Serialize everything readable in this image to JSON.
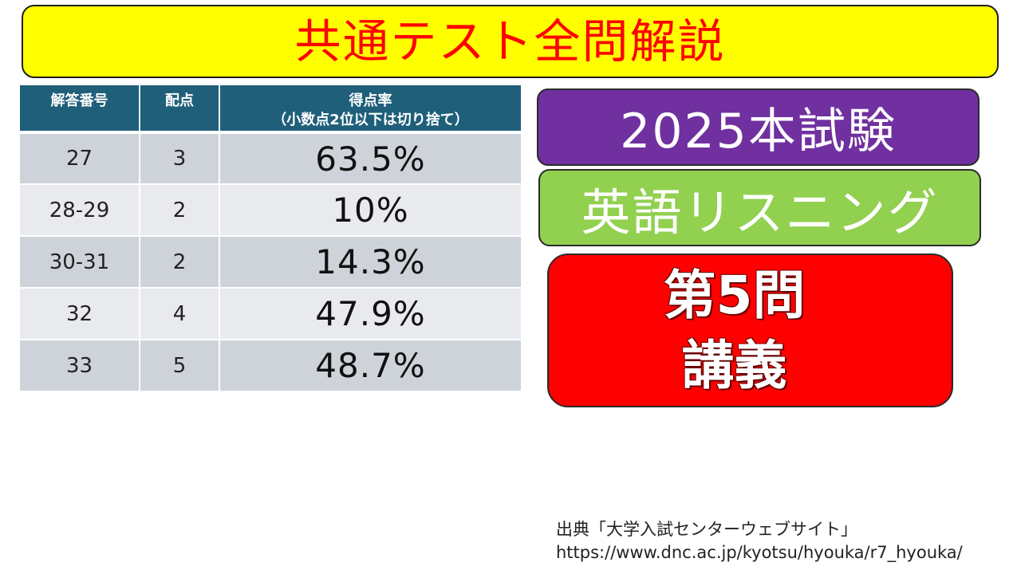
{
  "title": "共通テスト全問解説",
  "table": {
    "headers": {
      "number": "解答番号",
      "points": "配点",
      "rate_line1": "得点率",
      "rate_line2": "（小数点2位以下は切り捨て）"
    },
    "rows": [
      {
        "number": "27",
        "points": "3",
        "rate": "63.5%"
      },
      {
        "number": "28-29",
        "points": "2",
        "rate": "10%"
      },
      {
        "number": "30-31",
        "points": "2",
        "rate": "14.3%"
      },
      {
        "number": "32",
        "points": "4",
        "rate": "47.9%"
      },
      {
        "number": "33",
        "points": "5",
        "rate": "48.7%"
      }
    ]
  },
  "exam_label": "2025本試験",
  "subject_label": "英語リスニング",
  "part_label": {
    "line1": "第5問",
    "line2": "講義"
  },
  "source": {
    "line1": "出典「大学入試センターウェブサイト」",
    "line2": "https://www.dnc.ac.jp/kyotsu/hyouka/r7_hyouka/"
  },
  "colors": {
    "title_bg": "#ffff00",
    "title_text": "#ff0000",
    "table_header": "#1f5f7a",
    "exam_bg": "#7030a0",
    "subject_bg": "#92d050",
    "part_bg": "#ff0000"
  }
}
